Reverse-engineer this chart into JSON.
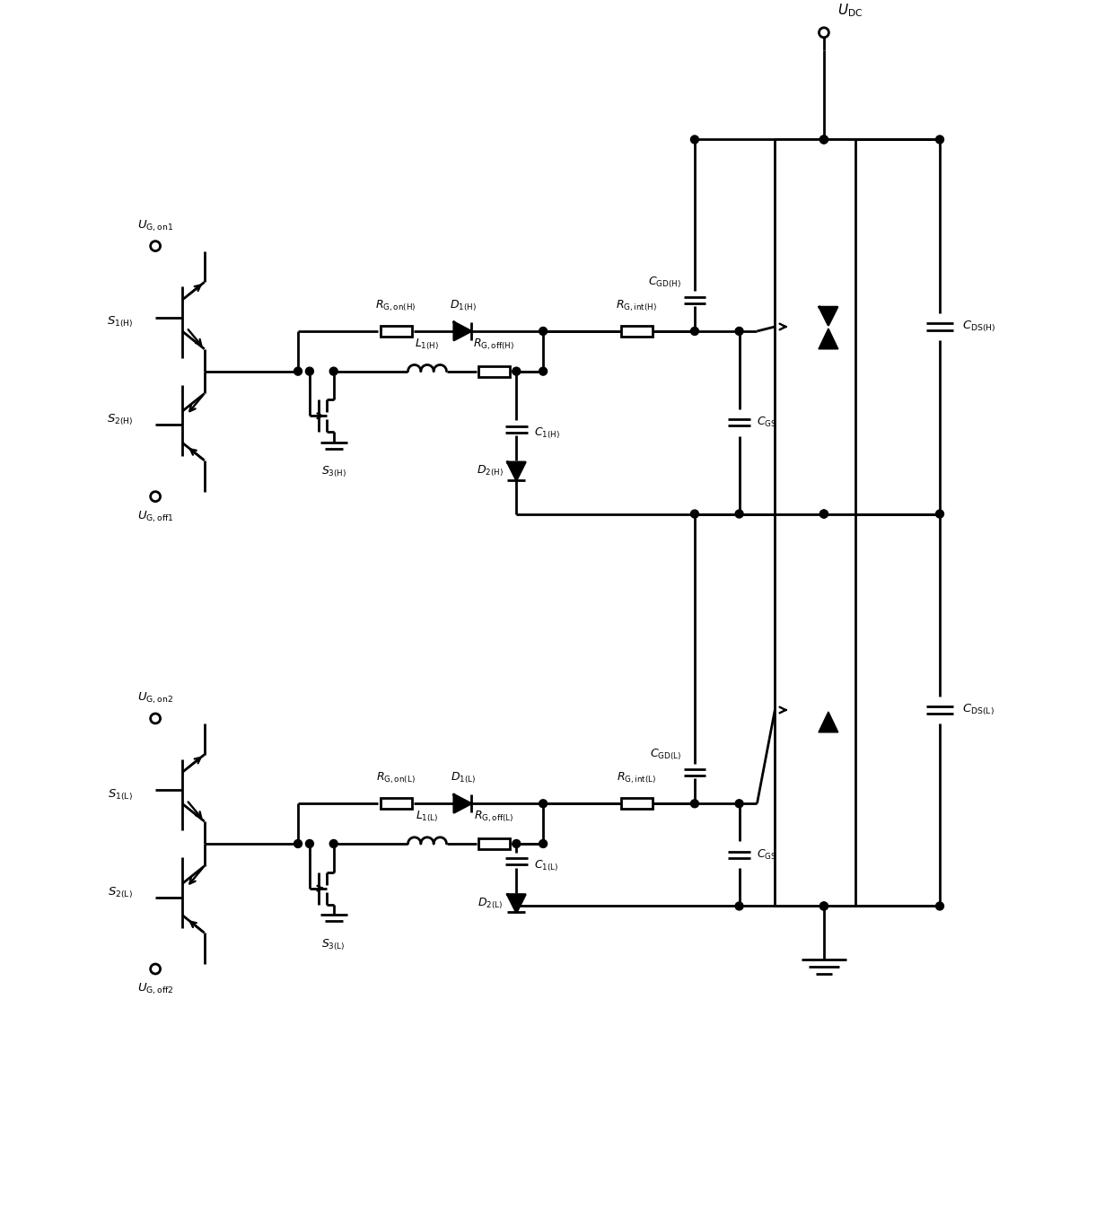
{
  "fig_width": 12.4,
  "fig_height": 13.67,
  "dpi": 100,
  "lw": 2.0,
  "xmax": 124,
  "ymax": 136.7
}
